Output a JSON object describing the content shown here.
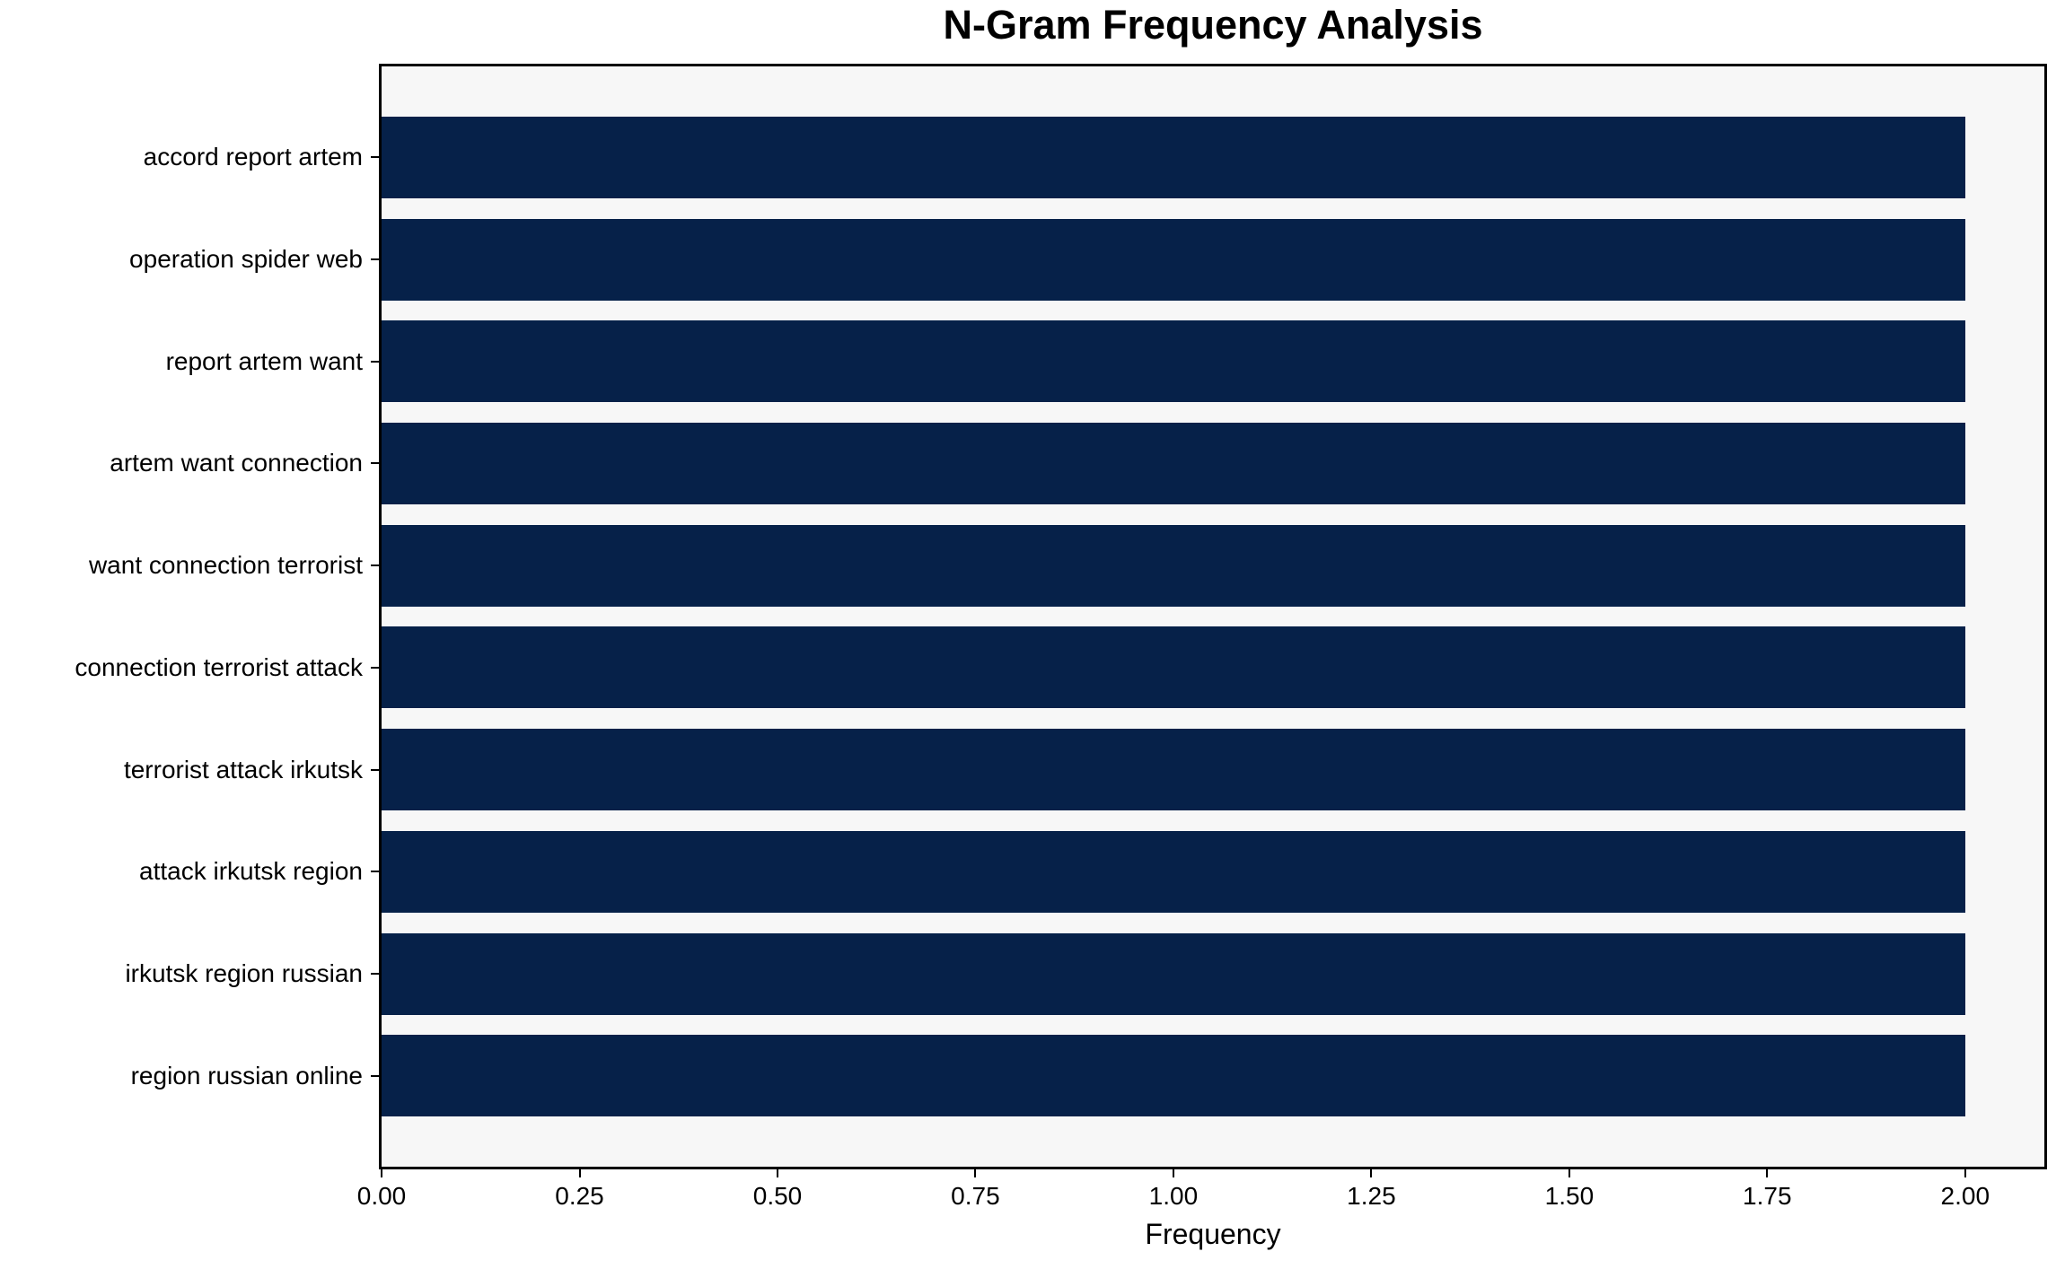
{
  "chart_data": {
    "type": "bar",
    "orientation": "horizontal",
    "title": "N-Gram Frequency Analysis",
    "xlabel": "Frequency",
    "ylabel": "",
    "categories": [
      "accord report artem",
      "operation spider web",
      "report artem want",
      "artem want connection",
      "want connection terrorist",
      "connection terrorist attack",
      "terrorist attack irkutsk",
      "attack irkutsk region",
      "irkutsk region russian",
      "region russian online"
    ],
    "values": [
      2,
      2,
      2,
      2,
      2,
      2,
      2,
      2,
      2,
      2
    ],
    "xlim": [
      0,
      2.1
    ],
    "xticks": [
      0,
      0.25,
      0.5,
      0.75,
      1,
      1.25,
      1.5,
      1.75,
      2
    ],
    "xtick_labels": [
      "0.00",
      "0.25",
      "0.50",
      "0.75",
      "1.00",
      "1.25",
      "1.50",
      "1.75",
      "2.00"
    ],
    "grid": false,
    "legend": null,
    "colors": {
      "bar": "#062149",
      "plot_background": "#f7f7f7",
      "figure_background": "#ffffff",
      "spine": "#000000",
      "text": "#000000"
    }
  }
}
